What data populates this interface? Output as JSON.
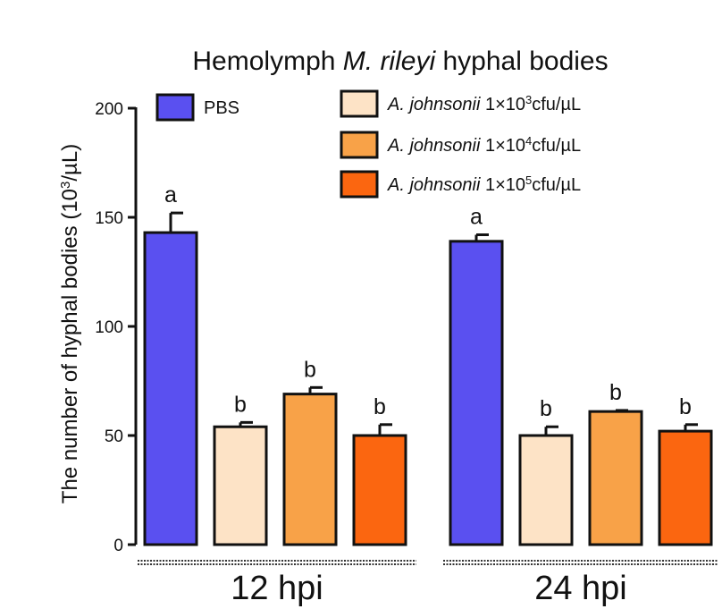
{
  "chart_data": {
    "type": "bar",
    "title_parts": [
      "Hemolymph ",
      "M. rileyi",
      " hyphal bodies"
    ],
    "ylabel_parts": [
      "The number of hyphal bodies (10",
      "3",
      "/µL)"
    ],
    "xlabel": "",
    "categories": [
      "12 hpi",
      "24 hpi"
    ],
    "ylim": [
      0,
      200
    ],
    "yticks": [
      0,
      50,
      100,
      150,
      200
    ],
    "grid": false,
    "legend_position": "top",
    "series": [
      {
        "name": "PBS",
        "name_parts": [
          "PBS",
          "",
          "",
          ""
        ],
        "color": "#5a50f0",
        "values": [
          143,
          139
        ],
        "errors": [
          9,
          3
        ],
        "sig": [
          "a",
          "a"
        ]
      },
      {
        "name": "A. johnsonii 1×10^3cfu/µL",
        "name_parts": [
          "A. johnsonii",
          " 1×10",
          "3",
          "cfu/µL"
        ],
        "color": "#fde3c6",
        "values": [
          54,
          50
        ],
        "errors": [
          2,
          4
        ],
        "sig": [
          "b",
          "b"
        ]
      },
      {
        "name": "A. johnsonii 1×10^4cfu/µL",
        "name_parts": [
          "A. johnsonii",
          " 1×10",
          "4",
          "cfu/µL"
        ],
        "color": "#f8a248",
        "values": [
          69,
          61
        ],
        "errors": [
          3,
          0.5
        ],
        "sig": [
          "b",
          "b"
        ]
      },
      {
        "name": "A. johnsonii 1×10^5cfu/µL",
        "name_parts": [
          "A. johnsonii",
          " 1×10",
          "5",
          "cfu/µL"
        ],
        "color": "#fb6610",
        "values": [
          50,
          52
        ],
        "errors": [
          5,
          3
        ],
        "sig": [
          "b",
          "b"
        ]
      }
    ]
  }
}
